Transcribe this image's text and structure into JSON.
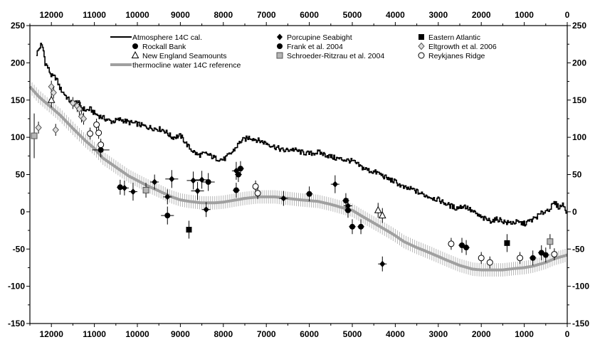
{
  "chart_data": {
    "type": "line",
    "xlim": [
      12500,
      0
    ],
    "ylim": [
      -150,
      250
    ],
    "x_ticks": [
      12000,
      11000,
      10000,
      9000,
      8000,
      7000,
      6000,
      5000,
      4000,
      3000,
      2000,
      1000,
      0
    ],
    "y_ticks": [
      250,
      200,
      150,
      100,
      50,
      0,
      -50,
      -100,
      -150
    ],
    "grid": false,
    "legend_placement": "top",
    "legend": [
      {
        "label": "Atmosphere 14C cal.",
        "marker": "line",
        "color": "#000000"
      },
      {
        "label": "Rockall Bank",
        "marker": "filled-circle",
        "color": "#000000"
      },
      {
        "label": "New England Seamounts",
        "marker": "open-triangle",
        "color": "#000000"
      },
      {
        "label": "thermocline water 14C reference",
        "marker": "thick-line",
        "color": "#aaaaaa"
      },
      {
        "label": "Porcupine Seabight",
        "marker": "filled-diamond",
        "color": "#000000"
      },
      {
        "label": "Frank et al. 2004",
        "marker": "filled-circle",
        "color": "#000000"
      },
      {
        "label": "Schroeder-Ritzrau et al. 2004",
        "marker": "grey-square",
        "color": "#aaaaaa"
      },
      {
        "label": "Eastern Atlantic",
        "marker": "filled-square",
        "color": "#000000"
      },
      {
        "label": "Eltgrowth et al. 2006",
        "marker": "open-diamond",
        "color": "#888888"
      },
      {
        "label": "Reykjanes Ridge",
        "marker": "open-circle",
        "color": "#000000"
      }
    ],
    "series": [
      {
        "name": "Atmosphere 14C cal.",
        "style": "line",
        "color": "#000000",
        "x": [
          12350,
          12250,
          12200,
          12150,
          12100,
          12000,
          11900,
          11800,
          11700,
          11600,
          11500,
          11400,
          11300,
          11200,
          11100,
          11000,
          10800,
          10600,
          10400,
          10200,
          10000,
          9800,
          9600,
          9400,
          9200,
          9000,
          8800,
          8600,
          8400,
          8200,
          8000,
          7800,
          7600,
          7400,
          7200,
          7000,
          6800,
          6600,
          6400,
          6200,
          6000,
          5800,
          5600,
          5400,
          5200,
          5000,
          4800,
          4600,
          4400,
          4200,
          4000,
          3800,
          3600,
          3400,
          3200,
          3000,
          2800,
          2600,
          2400,
          2200,
          2000,
          1800,
          1600,
          1400,
          1200,
          1000,
          800,
          600,
          400,
          300,
          200,
          100,
          0
        ],
        "y": [
          212,
          224,
          220,
          200,
          195,
          182,
          180,
          165,
          158,
          150,
          145,
          148,
          140,
          136,
          138,
          132,
          126,
          121,
          124,
          120,
          118,
          114,
          112,
          110,
          100,
          102,
          86,
          76,
          78,
          72,
          70,
          80,
          95,
          100,
          96,
          92,
          87,
          82,
          84,
          80,
          78,
          80,
          76,
          72,
          70,
          68,
          60,
          55,
          52,
          45,
          40,
          32,
          30,
          24,
          20,
          16,
          10,
          5,
          8,
          0,
          -8,
          -12,
          -10,
          -15,
          -14,
          -16,
          -10,
          -2,
          5,
          12,
          6,
          10,
          -2
        ]
      },
      {
        "name": "thermocline water 14C reference",
        "style": "thick-line",
        "color": "#aaaaaa",
        "x": [
          12500,
          12300,
          12000,
          11800,
          11500,
          11200,
          11000,
          10800,
          10500,
          10200,
          10000,
          9800,
          9500,
          9200,
          9000,
          8800,
          8500,
          8200,
          8000,
          7800,
          7500,
          7200,
          7000,
          6800,
          6500,
          6200,
          6000,
          5800,
          5500,
          5200,
          5000,
          4800,
          4500,
          4200,
          4000,
          3800,
          3500,
          3200,
          3000,
          2800,
          2500,
          2200,
          2000,
          1800,
          1500,
          1200,
          1000,
          800,
          500,
          300,
          0
        ],
        "y": [
          168,
          155,
          140,
          130,
          112,
          95,
          85,
          72,
          60,
          48,
          42,
          36,
          28,
          20,
          16,
          14,
          12,
          12,
          13,
          15,
          18,
          20,
          20,
          20,
          18,
          16,
          15,
          14,
          10,
          5,
          2,
          -5,
          -15,
          -25,
          -32,
          -40,
          -48,
          -55,
          -60,
          -65,
          -72,
          -77,
          -78,
          -78,
          -78,
          -76,
          -75,
          -73,
          -68,
          -63,
          -58
        ]
      },
      {
        "name": "Rockall Bank",
        "style": "points",
        "marker": "filled-circle",
        "x": [
          10850,
          10400,
          7650,
          7600
        ],
        "y": [
          83,
          33,
          50,
          58
        ],
        "xerr": [
          200,
          80,
          80,
          80
        ],
        "yerr": [
          10,
          10,
          10,
          10
        ]
      },
      {
        "name": "Frank et al. 2004",
        "style": "points",
        "marker": "filled-circle",
        "x": [
          9300,
          8350,
          7700,
          6000,
          5150,
          5100,
          5000,
          4800,
          2450,
          2350,
          800,
          600,
          500
        ],
        "y": [
          -5,
          40,
          29,
          24,
          15,
          2,
          -20,
          -20,
          -45,
          -48,
          -62,
          -55,
          -58
        ],
        "xerr": [
          150,
          150,
          80,
          80,
          80,
          80,
          80,
          80,
          80,
          80,
          80,
          80,
          80
        ],
        "yerr": [
          12,
          12,
          10,
          10,
          10,
          10,
          10,
          10,
          10,
          10,
          10,
          10,
          10
        ]
      },
      {
        "name": "Porcupine Seabight",
        "style": "points",
        "marker": "filled-diamond",
        "x": [
          10300,
          10100,
          9600,
          9300,
          9200,
          8700,
          8600,
          8500,
          8400,
          7700,
          6600,
          5400,
          5100,
          4300
        ],
        "y": [
          32,
          27,
          40,
          20,
          44,
          42,
          28,
          43,
          3,
          55,
          18,
          37,
          8,
          -70
        ],
        "xerr": [
          100,
          100,
          100,
          100,
          150,
          150,
          150,
          150,
          100,
          100,
          100,
          100,
          100,
          100
        ],
        "yerr": [
          10,
          12,
          10,
          10,
          12,
          12,
          12,
          12,
          10,
          12,
          10,
          12,
          10,
          10
        ]
      },
      {
        "name": "Eastern Atlantic",
        "style": "points",
        "marker": "filled-square",
        "x": [
          8800,
          1400
        ],
        "y": [
          -24,
          -42
        ],
        "xerr": [
          40,
          40
        ],
        "yerr": [
          12,
          12
        ]
      },
      {
        "name": "New England Seamounts",
        "style": "points",
        "marker": "open-triangle",
        "x": [
          12000,
          4400,
          4300
        ],
        "y": [
          150,
          2,
          -5
        ],
        "xerr": [
          50,
          50,
          50
        ],
        "yerr": [
          10,
          10,
          10
        ]
      },
      {
        "name": "Schroeder-Ritzrau et al. 2004",
        "style": "points",
        "marker": "grey-square",
        "x": [
          12400,
          9800,
          400
        ],
        "y": [
          102,
          29,
          -40
        ],
        "xerr": [
          50,
          50,
          50
        ],
        "yerr": [
          30,
          10,
          10
        ]
      },
      {
        "name": "Eltgrowth et al. 2006",
        "style": "points",
        "marker": "open-diamond",
        "x": [
          12300,
          12000,
          11950,
          11900,
          11500,
          11400,
          11350,
          11300,
          11250
        ],
        "y": [
          113,
          168,
          160,
          110,
          146,
          142,
          138,
          128,
          125
        ],
        "xerr": [
          30,
          30,
          30,
          30,
          30,
          30,
          30,
          30,
          30
        ],
        "yerr": [
          8,
          8,
          8,
          8,
          8,
          8,
          8,
          8,
          8
        ]
      },
      {
        "name": "Reykjanes Ridge",
        "style": "points",
        "marker": "open-circle",
        "x": [
          11100,
          10950,
          10900,
          10850,
          7250,
          7200,
          2700,
          2000,
          1800,
          1100,
          300
        ],
        "y": [
          105,
          117,
          106,
          90,
          34,
          25,
          -43,
          -62,
          -68,
          -62,
          -57
        ],
        "xerr": [
          50,
          50,
          50,
          50,
          50,
          50,
          50,
          50,
          50,
          50,
          50
        ],
        "yerr": [
          8,
          8,
          8,
          8,
          8,
          8,
          8,
          8,
          8,
          8,
          8
        ]
      }
    ]
  }
}
